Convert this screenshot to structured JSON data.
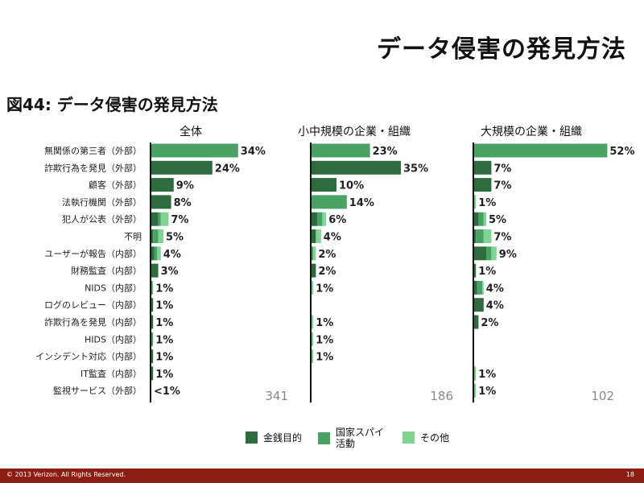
{
  "slide_title": "データ侵害の発見方法",
  "figure_title": "図44: データ侵害の発見方法",
  "legend": [
    {
      "label": "金銭目的",
      "color": "#2e6b3f"
    },
    {
      "label": "国家スパイ\n活動",
      "color": "#4aa164"
    },
    {
      "label": "その他",
      "color": "#7fd492"
    }
  ],
  "chart_data": {
    "type": "bar",
    "stacked": true,
    "orientation": "horizontal",
    "categories": [
      "無関係の第三者（外部）",
      "詐欺行為を発見（外部）",
      "顧客（外部）",
      "法執行機関（外部）",
      "犯人が公表（外部）",
      "不明",
      "ユーザーが報告（内部）",
      "財務監査（内部）",
      "NIDS（内部）",
      "ログのレビュー（内部）",
      "詐欺行為を発見（内部）",
      "HIDS（内部）",
      "インシデント対応（内部）",
      "IT監査（内部）",
      "監視サービス（外部）"
    ],
    "panels": [
      {
        "title": "全体",
        "n": "341",
        "labels": [
          "34%",
          "24%",
          "9%",
          "8%",
          "7%",
          "5%",
          "4%",
          "3%",
          "1%",
          "1%",
          "1%",
          "1%",
          "1%",
          "1%",
          "<1%"
        ],
        "series": [
          {
            "name": "金銭目的",
            "values": [
              0,
              24,
              9,
              8,
              3,
              1,
              1.5,
              3,
              0.5,
              1,
              1,
              0.5,
              1,
              1,
              0.3
            ]
          },
          {
            "name": "国家スパイ活動",
            "values": [
              34,
              0,
              0,
              0,
              1,
              2,
              1,
              0,
              0.3,
              0,
              0,
              0.5,
              0,
              0,
              0
            ]
          },
          {
            "name": "その他",
            "values": [
              0,
              0,
              0,
              0,
              3,
              2,
              1.5,
              0,
              0.2,
              0,
              0,
              0,
              0,
              0,
              0
            ]
          }
        ]
      },
      {
        "title": "小中規模の企業・組織",
        "n": "186",
        "labels": [
          "23%",
          "35%",
          "10%",
          "14%",
          "6%",
          "4%",
          "2%",
          "2%",
          "1%",
          "",
          "1%",
          "1%",
          "1%",
          "",
          ""
        ],
        "series": [
          {
            "name": "金銭目的",
            "values": [
              0,
              35,
              10,
              0,
              2.5,
              2,
              0,
              2,
              0,
              0,
              0,
              0,
              0,
              0,
              0
            ]
          },
          {
            "name": "国家スパイ活動",
            "values": [
              23,
              0,
              0,
              14,
              2,
              0,
              1,
              0,
              0,
              0,
              0,
              0.5,
              0.5,
              0,
              0
            ]
          },
          {
            "name": "その他",
            "values": [
              0,
              0,
              0,
              0,
              1.5,
              2,
              1,
              0,
              1,
              0,
              1,
              0.5,
              0.5,
              0,
              0
            ]
          }
        ]
      },
      {
        "title": "大規模の企業・組織",
        "n": "102",
        "labels": [
          "52%",
          "7%",
          "7%",
          "1%",
          "5%",
          "7%",
          "9%",
          "1%",
          "4%",
          "4%",
          "2%",
          "",
          "",
          "1%",
          "1%"
        ],
        "series": [
          {
            "name": "金銭目的",
            "values": [
              0,
              7,
              7,
              0,
              2,
              1,
              5,
              1,
              1.5,
              4,
              2,
              0,
              0,
              0,
              0
            ]
          },
          {
            "name": "国家スパイ活動",
            "values": [
              52,
              0,
              0,
              0.5,
              2,
              3,
              2,
              0,
              2,
              0,
              0,
              0,
              0,
              0.5,
              0.5
            ]
          },
          {
            "name": "その他",
            "values": [
              0,
              0,
              0,
              0.5,
              1,
              3,
              2,
              0,
              0.5,
              0,
              0,
              0,
              0,
              0.5,
              0.5
            ]
          }
        ]
      }
    ],
    "xlim": [
      0,
      52
    ],
    "grid": false
  },
  "footer": {
    "copyright": "© 2013 Verizon. All Rights Reserved.",
    "page": "18"
  }
}
